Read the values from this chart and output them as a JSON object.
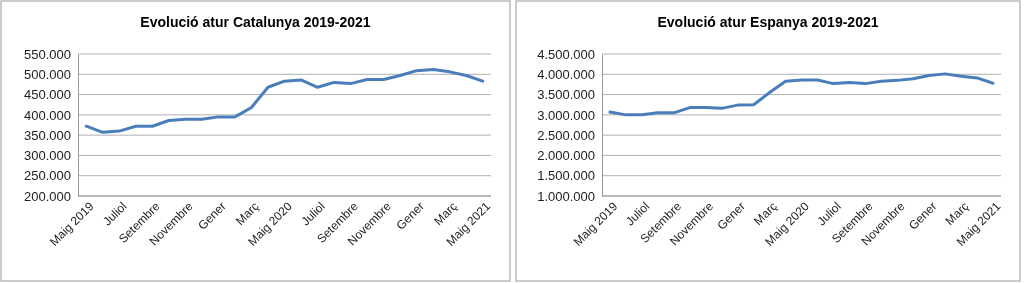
{
  "chart_data": [
    {
      "type": "line",
      "title": "Evolució atur Catalunya 2019-2021",
      "categories": [
        "Maig 2019",
        null,
        "Juliol",
        null,
        "Setembre",
        null,
        "Novembre",
        null,
        "Gener",
        null,
        "Març",
        null,
        "Maig 2020",
        null,
        "Juliol",
        null,
        "Setembre",
        null,
        "Novembre",
        null,
        "Gener",
        null,
        "Març",
        null,
        "Maig 2021"
      ],
      "series": [
        {
          "color": "#4a7ebb",
          "values": [
            372000,
            357000,
            360000,
            372000,
            372000,
            386000,
            389000,
            389000,
            395000,
            395000,
            418000,
            468000,
            483000,
            486000,
            468000,
            480000,
            477000,
            487000,
            487000,
            497000,
            509000,
            512000,
            506000,
            497000,
            483000
          ]
        }
      ],
      "ylim": [
        200000,
        550000
      ],
      "yticks": [
        {
          "value": 200000,
          "label": "200.000"
        },
        {
          "value": 250000,
          "label": "250.000"
        },
        {
          "value": 300000,
          "label": "300.000"
        },
        {
          "value": 350000,
          "label": "350.000"
        },
        {
          "value": 400000,
          "label": "400.000"
        },
        {
          "value": 450000,
          "label": "450.000"
        },
        {
          "value": 500000,
          "label": "500.000"
        },
        {
          "value": 550000,
          "label": "550.000"
        }
      ],
      "grid": "y",
      "marker": "none",
      "line_style": "solid"
    },
    {
      "type": "line",
      "title": "Evolució atur Espanya 2019-2021",
      "categories": [
        "Maig 2019",
        null,
        "Juliol",
        null,
        "Setembre",
        null,
        "Novembre",
        null,
        "Gener",
        null,
        "Març",
        null,
        "Maig 2020",
        null,
        "Juliol",
        null,
        "Setembre",
        null,
        "Novembre",
        null,
        "Gener",
        null,
        "Març",
        null,
        "Maig 2021"
      ],
      "series": [
        {
          "color": "#4a7ebb",
          "values": [
            3070000,
            3000000,
            3000000,
            3050000,
            3050000,
            3180000,
            3180000,
            3160000,
            3240000,
            3250000,
            3550000,
            3830000,
            3860000,
            3860000,
            3770000,
            3800000,
            3770000,
            3830000,
            3850000,
            3890000,
            3970000,
            4010000,
            3950000,
            3910000,
            3780000
          ]
        }
      ],
      "ylim": [
        1000000,
        4500000
      ],
      "yticks": [
        {
          "value": 1000000,
          "label": "1.000.000"
        },
        {
          "value": 1500000,
          "label": "1.500.000"
        },
        {
          "value": 2000000,
          "label": "2.000.000"
        },
        {
          "value": 2500000,
          "label": "2.500.000"
        },
        {
          "value": 3000000,
          "label": "3.000.000"
        },
        {
          "value": 3500000,
          "label": "3.500.000"
        },
        {
          "value": 4000000,
          "label": "4.000.000"
        },
        {
          "value": 4500000,
          "label": "4.500.000"
        }
      ],
      "grid": "y",
      "marker": "none",
      "line_style": "solid"
    }
  ]
}
